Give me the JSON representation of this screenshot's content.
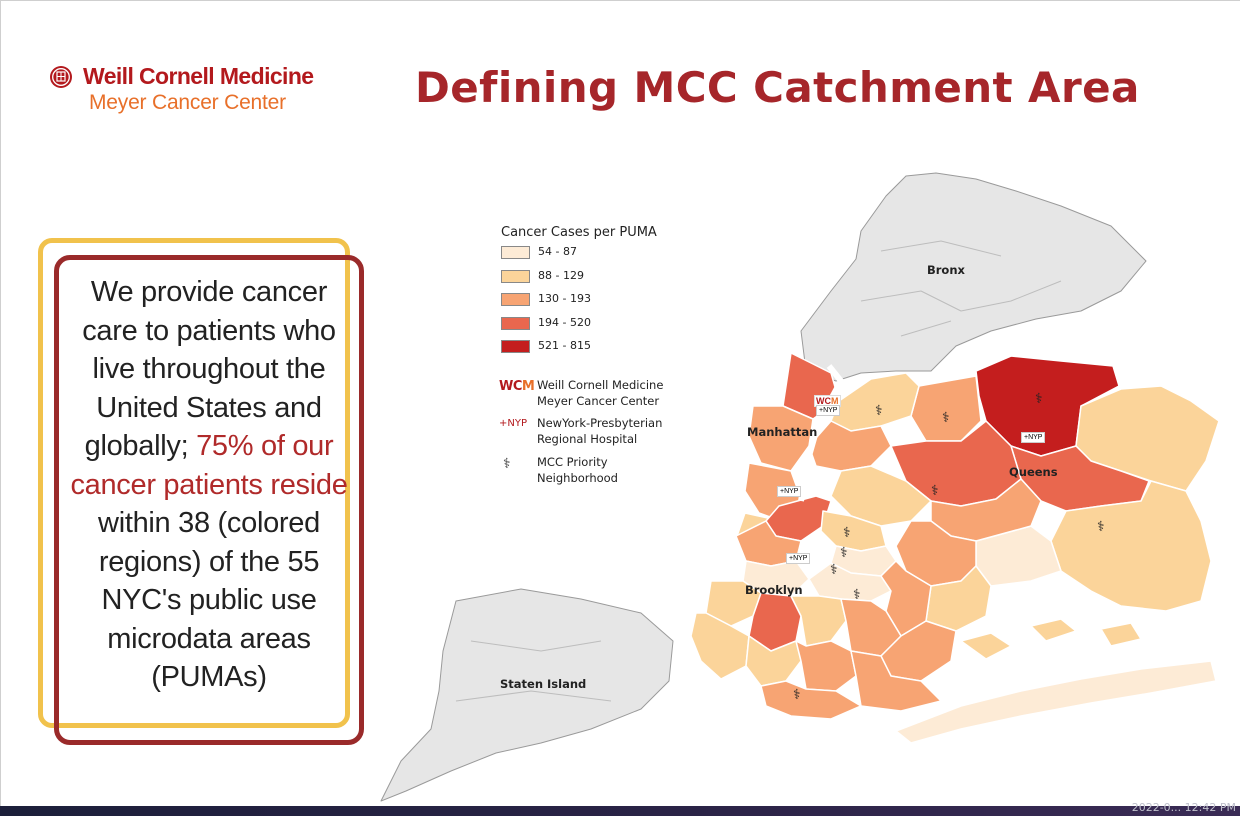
{
  "header": {
    "logo_name": "Weill Cornell Medicine",
    "logo_sub": "Meyer Cancer Center",
    "title": "Defining MCC Catchment Area"
  },
  "callout": {
    "text_before": "We provide cancer care to patients who live throughout the United States and globally;",
    "highlight": "75% of our cancer patients reside",
    "text_after": "within 38 (colored regions) of the 55 NYC's public use microdata areas (PUMAs)"
  },
  "legend": {
    "title": "Cancer Cases per PUMA",
    "bins": [
      {
        "label": "54 - 87",
        "color": "#fdebd6"
      },
      {
        "label": "88 - 129",
        "color": "#fbd49a"
      },
      {
        "label": "130 - 193",
        "color": "#f7a473"
      },
      {
        "label": "194 - 520",
        "color": "#e9674e"
      },
      {
        "label": "521 - 815",
        "color": "#c41e1e"
      }
    ],
    "symbols": [
      {
        "glyph": "WCM",
        "line1": "Weill Cornell Medicine",
        "line2": "Meyer Cancer Center"
      },
      {
        "glyph": "+NYP",
        "line1": "NewYork-Presbyterian",
        "line2": "Regional Hospital"
      },
      {
        "glyph": "⚕",
        "line1": "MCC Priority",
        "line2": "Neighborhood"
      }
    ]
  },
  "boroughs": {
    "bronx": "Bronx",
    "manhattan": "Manhattan",
    "queens": "Queens",
    "brooklyn": "Brooklyn",
    "staten_island": "Staten Island"
  },
  "markers": {
    "wcm": "WCM",
    "nyp": "+NYP",
    "priority": "⚕"
  },
  "taskbar": {
    "clock": "2022-0... 12:42 PM"
  },
  "colors": {
    "brand_red": "#b3191d",
    "brand_orange": "#e8702a",
    "title_red": "#a6262a",
    "frame_gold": "#f1c24c",
    "frame_maroon": "#9a2a2a",
    "highlight_red": "#b02a2a",
    "land_gray": "#e6e6e6",
    "border_gray": "#9a9a9a"
  }
}
